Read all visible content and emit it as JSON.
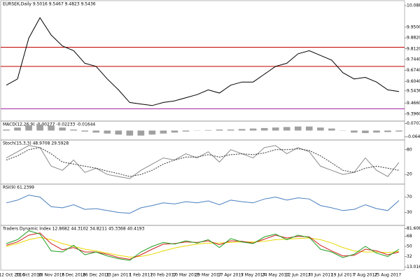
{
  "chart_data": [
    {
      "type": "line",
      "title": "EURSEK,Daily 9.5016 9.5467 9.4823 9.5436",
      "ylim": [
        9.36,
        10.11
      ],
      "yticks": [
        {
          "value": 10.088,
          "label": "10.0880"
        },
        {
          "value": 9.95,
          "label": "9.9500"
        },
        {
          "value": 9.882,
          "label": "9.8820"
        },
        {
          "value": 9.812,
          "label": "9.8120"
        },
        {
          "value": 9.744,
          "label": "9.7440"
        },
        {
          "value": 9.674,
          "label": "9.6740"
        },
        {
          "value": 9.604,
          "label": "9.6040"
        },
        {
          "value": 9.5436,
          "label": "9.5436"
        },
        {
          "value": 9.466,
          "label": "9.4660"
        },
        {
          "value": 9.396,
          "label": "9.3960"
        }
      ],
      "levels": [
        {
          "value": 9.822,
          "color": "#c00000"
        },
        {
          "value": 9.7,
          "color": "#c00000"
        },
        {
          "value": 9.43,
          "color": "#a020a0"
        }
      ],
      "series": [
        {
          "color": "#000000",
          "values": [
            9.58,
            9.62,
            9.88,
            10.01,
            9.9,
            9.83,
            9.8,
            9.72,
            9.7,
            9.62,
            9.55,
            9.47,
            9.46,
            9.45,
            9.47,
            9.48,
            9.5,
            9.52,
            9.55,
            9.53,
            9.58,
            9.6,
            9.6,
            9.65,
            9.7,
            9.72,
            9.78,
            9.8,
            9.77,
            9.74,
            9.66,
            9.62,
            9.63,
            9.6,
            9.55,
            9.54
          ]
        }
      ]
    },
    {
      "type": "bar",
      "title": "MACD(12,26,9) -0.00277 -0.02233 -0.01644",
      "ylim": [
        -0.08,
        0.08
      ],
      "color": "#a0a0a0",
      "yticks": [
        {
          "value": 0.07071,
          "label": "0.07071"
        },
        {
          "value": -0.06402,
          "label": "-0.06402"
        }
      ],
      "values": [
        0.01,
        0.03,
        0.05,
        0.06,
        0.05,
        0.03,
        0.01,
        -0.01,
        -0.02,
        -0.03,
        -0.04,
        -0.05,
        -0.05,
        -0.04,
        -0.03,
        -0.02,
        -0.01,
        0.0,
        0.005,
        0.01,
        0.01,
        0.015,
        0.02,
        0.025,
        0.03,
        0.035,
        0.04,
        0.04,
        0.03,
        0.02,
        0.0,
        -0.02,
        -0.025,
        -0.02,
        -0.015,
        -0.01
      ]
    },
    {
      "type": "line",
      "title": "Stoch(15,3,3) 48.9708 29.5928",
      "ylim": [
        0,
        100
      ],
      "yticks": [
        80,
        20
      ],
      "series": [
        {
          "color": "#8a8a8a",
          "values": [
            60,
            75,
            90,
            85,
            40,
            30,
            55,
            25,
            35,
            20,
            15,
            10,
            30,
            45,
            60,
            55,
            70,
            60,
            75,
            50,
            80,
            70,
            60,
            85,
            90,
            70,
            85,
            75,
            40,
            30,
            20,
            25,
            60,
            30,
            15,
            49
          ]
        },
        {
          "color": "#333333",
          "dashed": true,
          "values": [
            55,
            65,
            80,
            85,
            70,
            50,
            45,
            40,
            35,
            28,
            22,
            15,
            20,
            30,
            45,
            55,
            62,
            62,
            68,
            62,
            68,
            70,
            68,
            72,
            80,
            80,
            82,
            78,
            65,
            48,
            30,
            25,
            35,
            40,
            35,
            30
          ]
        }
      ]
    },
    {
      "type": "line",
      "title": "RSI(9) 61.2399",
      "ylim": [
        0,
        100
      ],
      "yticks": [
        70,
        30
      ],
      "series": [
        {
          "color": "#4a7fbf",
          "values": [
            55,
            62,
            75,
            70,
            45,
            42,
            50,
            38,
            40,
            35,
            30,
            28,
            42,
            48,
            55,
            52,
            58,
            55,
            60,
            50,
            62,
            58,
            55,
            65,
            70,
            62,
            68,
            65,
            48,
            42,
            35,
            38,
            50,
            40,
            35,
            61
          ]
        }
      ]
    },
    {
      "type": "line",
      "title": "Traders Dynamic Index 12.8682 44.3102 34.8211 45.3368 40.4193",
      "ylim": [
        10,
        85
      ],
      "yticks": [
        {
          "value": 81.608,
          "label": "81.6080"
        },
        68,
        50,
        32,
        {
          "value": 13.0165,
          "label": "13.0165"
        }
      ],
      "categories": [
        "12 Oct 2016",
        null,
        "31 Oct 2016",
        null,
        "18 Nov 2016",
        null,
        "7 Dec 2016",
        null,
        "26 Dec 2016",
        null,
        "13 Jan 2017",
        null,
        "1 Feb 2017",
        null,
        "20 Feb 2017",
        null,
        "10 Mar 2017",
        null,
        "29 Mar 2017",
        null,
        "17 Apr 2017",
        null,
        "5 May 2017",
        null,
        "24 May 2017",
        null,
        "12 Jun 2017",
        null,
        "30 Jun 2017",
        null,
        "19 Jul 2017",
        null,
        "7 Aug 2017",
        null,
        "25 Aug 2017",
        null
      ],
      "series": [
        {
          "color": "#e8d800",
          "values": [
            50,
            55,
            62,
            66,
            62,
            55,
            50,
            45,
            42,
            38,
            34,
            31,
            32,
            36,
            42,
            47,
            51,
            54,
            56,
            56,
            57,
            58,
            58,
            59,
            62,
            63,
            64,
            65,
            62,
            56,
            48,
            42,
            40,
            40,
            39,
            41
          ]
        },
        {
          "color": "#d02020",
          "values": [
            52,
            58,
            70,
            74,
            55,
            44,
            48,
            40,
            40,
            36,
            30,
            27,
            35,
            45,
            54,
            55,
            58,
            57,
            60,
            53,
            60,
            59,
            56,
            63,
            70,
            65,
            68,
            67,
            52,
            42,
            33,
            34,
            45,
            42,
            35,
            40
          ]
        },
        {
          "color": "#20a020",
          "values": [
            55,
            62,
            78,
            72,
            42,
            40,
            52,
            35,
            40,
            33,
            28,
            25,
            40,
            50,
            57,
            54,
            60,
            56,
            62,
            48,
            64,
            58,
            55,
            67,
            72,
            62,
            70,
            66,
            45,
            40,
            30,
            36,
            50,
            38,
            32,
            45
          ]
        }
      ]
    }
  ]
}
